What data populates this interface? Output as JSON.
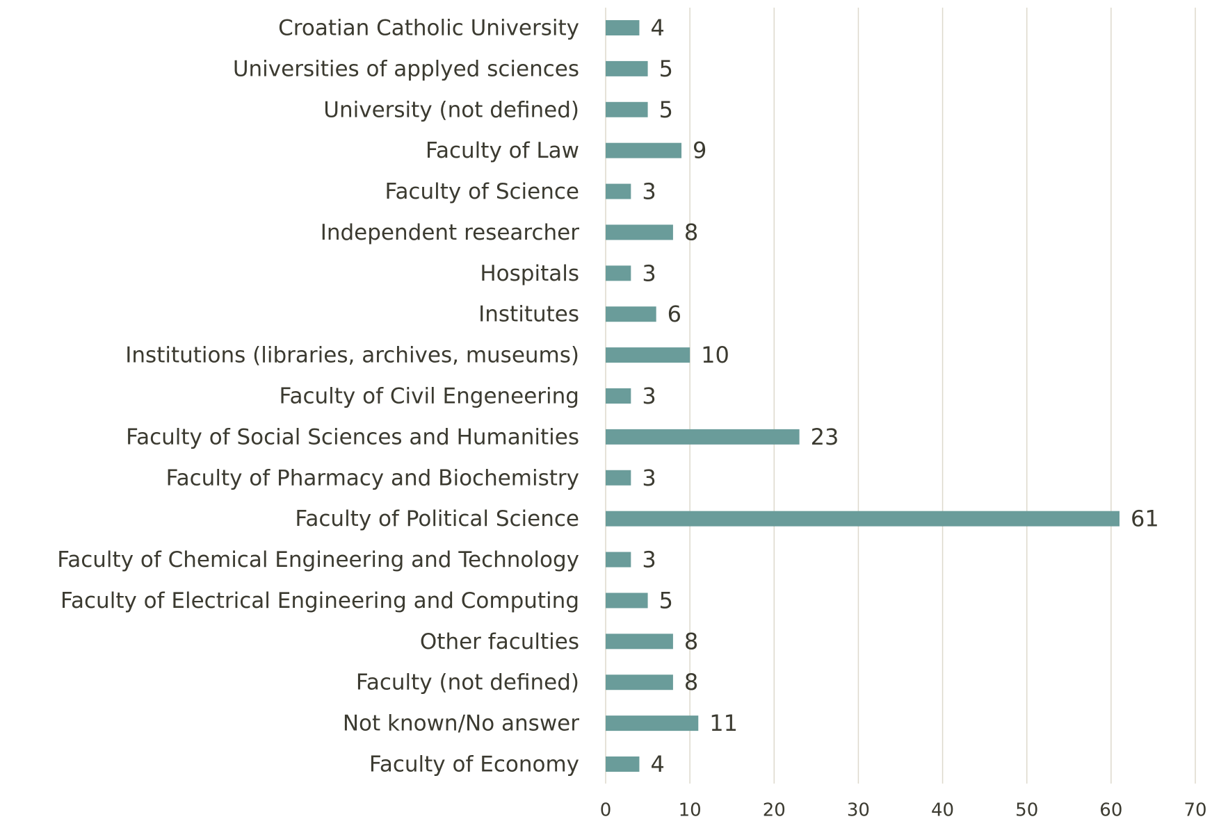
{
  "chart_data": {
    "type": "bar",
    "orientation": "horizontal",
    "categories": [
      "Croatian Catholic University",
      "Universities of applyed sciences",
      "University (not defined)",
      "Faculty of Law",
      "Faculty of Science",
      "Independent researcher",
      "Hospitals",
      "Institutes",
      "Institutions (libraries, archives, museums)",
      "Faculty of Civil Engeneering",
      "Faculty of Social Sciences and Humanities",
      "Faculty of Pharmacy and Biochemistry",
      "Faculty of Political Science",
      "Faculty of Chemical Engineering and Technology",
      "Faculty of Electrical Engineering and Computing",
      "Other faculties",
      "Faculty (not defined)",
      "Not known/No answer",
      "Faculty of Economy"
    ],
    "values": [
      4,
      5,
      5,
      9,
      3,
      8,
      3,
      6,
      10,
      3,
      23,
      3,
      61,
      3,
      5,
      8,
      8,
      11,
      4
    ],
    "color": "#6a9c9a",
    "xlim": [
      0,
      70
    ],
    "xticks": [
      0,
      10,
      20,
      30,
      40,
      50,
      60,
      70
    ],
    "grid": true
  }
}
